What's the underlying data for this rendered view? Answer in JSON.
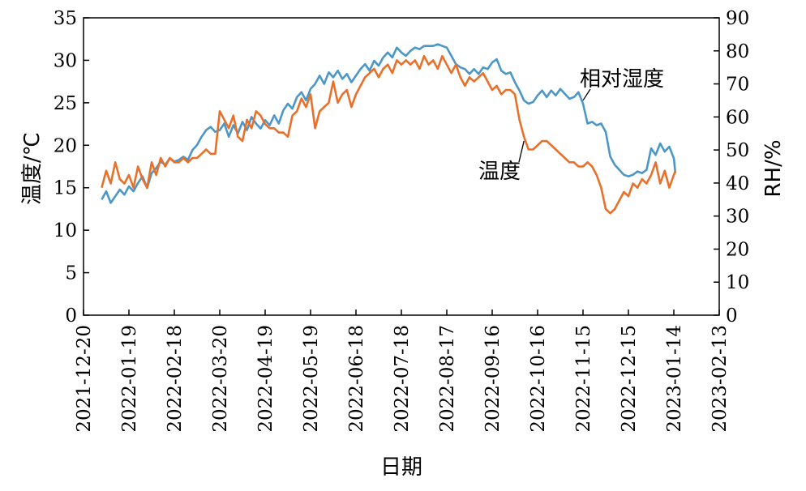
{
  "chart_data": {
    "type": "line",
    "title": "",
    "xlabel": "日期",
    "ylabel_left": "温度/℃",
    "ylabel_right": "RH/%",
    "x_ticks": [
      "2021-12-20",
      "2022-01-19",
      "2022-02-18",
      "2022-03-20",
      "2022-04-19",
      "2022-05-19",
      "2022-06-18",
      "2022-07-18",
      "2022-08-17",
      "2022-09-16",
      "2022-10-16",
      "2022-11-15",
      "2022-12-15",
      "2023-01-14",
      "2023-02-13"
    ],
    "xlim": [
      "2021-12-20",
      "2023-02-13"
    ],
    "ylim_left": [
      0,
      35
    ],
    "ylim_right": [
      0,
      90
    ],
    "yticks_left": [
      0,
      5,
      10,
      15,
      20,
      25,
      30,
      35
    ],
    "yticks_right": [
      0,
      10,
      20,
      30,
      40,
      50,
      60,
      70,
      80,
      90
    ],
    "grid": false,
    "legend": "none",
    "series": [
      {
        "name": "温度",
        "axis": "left",
        "color": "#E8702A",
        "points": [
          [
            "2022-01-01",
            15.0
          ],
          [
            "2022-01-04",
            17.0
          ],
          [
            "2022-01-07",
            15.5
          ],
          [
            "2022-01-10",
            18.0
          ],
          [
            "2022-01-13",
            16.0
          ],
          [
            "2022-01-16",
            15.5
          ],
          [
            "2022-01-19",
            16.5
          ],
          [
            "2022-01-22",
            15.0
          ],
          [
            "2022-01-25",
            17.5
          ],
          [
            "2022-01-28",
            16.0
          ],
          [
            "2022-01-31",
            15.0
          ],
          [
            "2022-02-03",
            18.0
          ],
          [
            "2022-02-06",
            16.5
          ],
          [
            "2022-02-09",
            18.5
          ],
          [
            "2022-02-12",
            17.5
          ],
          [
            "2022-02-15",
            18.5
          ],
          [
            "2022-02-18",
            18.0
          ],
          [
            "2022-02-21",
            18.0
          ],
          [
            "2022-02-24",
            18.5
          ],
          [
            "2022-02-27",
            18.0
          ],
          [
            "2022-03-02",
            18.5
          ],
          [
            "2022-03-05",
            18.5
          ],
          [
            "2022-03-08",
            19.0
          ],
          [
            "2022-03-11",
            19.5
          ],
          [
            "2022-03-14",
            19.0
          ],
          [
            "2022-03-17",
            19.0
          ],
          [
            "2022-03-20",
            24.0
          ],
          [
            "2022-03-23",
            23.0
          ],
          [
            "2022-03-26",
            22.0
          ],
          [
            "2022-03-29",
            23.5
          ],
          [
            "2022-04-01",
            21.0
          ],
          [
            "2022-04-04",
            20.5
          ],
          [
            "2022-04-07",
            23.0
          ],
          [
            "2022-04-10",
            22.0
          ],
          [
            "2022-04-13",
            24.0
          ],
          [
            "2022-04-16",
            23.5
          ],
          [
            "2022-04-19",
            22.5
          ],
          [
            "2022-04-22",
            22.0
          ],
          [
            "2022-04-25",
            22.0
          ],
          [
            "2022-04-28",
            21.5
          ],
          [
            "2022-05-01",
            21.5
          ],
          [
            "2022-05-04",
            21.0
          ],
          [
            "2022-05-07",
            23.5
          ],
          [
            "2022-05-10",
            24.0
          ],
          [
            "2022-05-13",
            25.5
          ],
          [
            "2022-05-16",
            24.5
          ],
          [
            "2022-05-19",
            26.0
          ],
          [
            "2022-05-22",
            22.0
          ],
          [
            "2022-05-25",
            24.0
          ],
          [
            "2022-05-28",
            24.5
          ],
          [
            "2022-05-31",
            25.0
          ],
          [
            "2022-06-03",
            27.5
          ],
          [
            "2022-06-06",
            25.0
          ],
          [
            "2022-06-09",
            26.0
          ],
          [
            "2022-06-12",
            26.5
          ],
          [
            "2022-06-15",
            24.5
          ],
          [
            "2022-06-18",
            26.0
          ],
          [
            "2022-06-21",
            27.0
          ],
          [
            "2022-06-24",
            28.0
          ],
          [
            "2022-06-27",
            28.5
          ],
          [
            "2022-06-30",
            29.0
          ],
          [
            "2022-07-03",
            28.0
          ],
          [
            "2022-07-06",
            29.0
          ],
          [
            "2022-07-09",
            29.5
          ],
          [
            "2022-07-12",
            28.5
          ],
          [
            "2022-07-15",
            30.0
          ],
          [
            "2022-07-18",
            29.5
          ],
          [
            "2022-07-21",
            30.0
          ],
          [
            "2022-07-24",
            29.5
          ],
          [
            "2022-07-27",
            30.0
          ],
          [
            "2022-07-30",
            29.0
          ],
          [
            "2022-08-02",
            30.5
          ],
          [
            "2022-08-05",
            29.5
          ],
          [
            "2022-08-08",
            30.0
          ],
          [
            "2022-08-11",
            29.0
          ],
          [
            "2022-08-14",
            30.5
          ],
          [
            "2022-08-17",
            29.5
          ],
          [
            "2022-08-20",
            28.5
          ],
          [
            "2022-08-23",
            29.5
          ],
          [
            "2022-08-26",
            28.0
          ],
          [
            "2022-08-29",
            27.0
          ],
          [
            "2022-09-01",
            28.0
          ],
          [
            "2022-09-04",
            27.5
          ],
          [
            "2022-09-07",
            28.0
          ],
          [
            "2022-09-10",
            28.5
          ],
          [
            "2022-09-13",
            27.5
          ],
          [
            "2022-09-16",
            26.5
          ],
          [
            "2022-09-19",
            27.0
          ],
          [
            "2022-09-22",
            26.0
          ],
          [
            "2022-09-25",
            26.5
          ],
          [
            "2022-09-28",
            26.5
          ],
          [
            "2022-10-01",
            26.0
          ],
          [
            "2022-10-04",
            23.0
          ],
          [
            "2022-10-07",
            21.0
          ],
          [
            "2022-10-10",
            19.5
          ],
          [
            "2022-10-13",
            19.5
          ],
          [
            "2022-10-16",
            20.0
          ],
          [
            "2022-10-19",
            20.5
          ],
          [
            "2022-10-22",
            20.5
          ],
          [
            "2022-10-25",
            20.0
          ],
          [
            "2022-10-28",
            19.5
          ],
          [
            "2022-10-31",
            19.0
          ],
          [
            "2022-11-03",
            18.5
          ],
          [
            "2022-11-06",
            18.0
          ],
          [
            "2022-11-09",
            18.0
          ],
          [
            "2022-11-12",
            17.5
          ],
          [
            "2022-11-15",
            17.5
          ],
          [
            "2022-11-18",
            18.0
          ],
          [
            "2022-11-21",
            17.5
          ],
          [
            "2022-11-24",
            16.5
          ],
          [
            "2022-11-27",
            15.0
          ],
          [
            "2022-11-30",
            12.5
          ],
          [
            "2022-12-03",
            12.0
          ],
          [
            "2022-12-06",
            12.5
          ],
          [
            "2022-12-09",
            13.5
          ],
          [
            "2022-12-12",
            14.5
          ],
          [
            "2022-12-15",
            14.0
          ],
          [
            "2022-12-18",
            15.5
          ],
          [
            "2022-12-21",
            15.0
          ],
          [
            "2022-12-24",
            16.0
          ],
          [
            "2022-12-27",
            15.5
          ],
          [
            "2022-12-30",
            16.5
          ],
          [
            "2023-01-02",
            18.0
          ],
          [
            "2023-01-05",
            15.5
          ],
          [
            "2023-01-08",
            17.0
          ],
          [
            "2023-01-11",
            15.0
          ],
          [
            "2023-01-14",
            16.5
          ],
          [
            "2023-01-15",
            17.0
          ]
        ]
      },
      {
        "name": "相对湿度",
        "axis": "right",
        "color": "#4B97C8",
        "points": [
          [
            "2022-01-01",
            35.0
          ],
          [
            "2022-01-04",
            37.5
          ],
          [
            "2022-01-07",
            34.0
          ],
          [
            "2022-01-10",
            36.0
          ],
          [
            "2022-01-13",
            38.0
          ],
          [
            "2022-01-16",
            36.5
          ],
          [
            "2022-01-19",
            39.0
          ],
          [
            "2022-01-22",
            37.5
          ],
          [
            "2022-01-25",
            40.0
          ],
          [
            "2022-01-28",
            42.0
          ],
          [
            "2022-01-31",
            38.5
          ],
          [
            "2022-02-03",
            43.0
          ],
          [
            "2022-02-06",
            44.5
          ],
          [
            "2022-02-09",
            46.5
          ],
          [
            "2022-02-12",
            45.5
          ],
          [
            "2022-02-15",
            47.5
          ],
          [
            "2022-02-18",
            46.5
          ],
          [
            "2022-02-21",
            47.0
          ],
          [
            "2022-02-24",
            48.0
          ],
          [
            "2022-02-27",
            47.0
          ],
          [
            "2022-03-02",
            50.0
          ],
          [
            "2022-03-05",
            51.5
          ],
          [
            "2022-03-08",
            54.0
          ],
          [
            "2022-03-11",
            56.0
          ],
          [
            "2022-03-14",
            57.0
          ],
          [
            "2022-03-17",
            55.5
          ],
          [
            "2022-03-20",
            56.0
          ],
          [
            "2022-03-23",
            58.0
          ],
          [
            "2022-03-26",
            54.0
          ],
          [
            "2022-03-29",
            57.5
          ],
          [
            "2022-04-01",
            55.0
          ],
          [
            "2022-04-04",
            58.5
          ],
          [
            "2022-04-07",
            56.0
          ],
          [
            "2022-04-10",
            60.0
          ],
          [
            "2022-04-13",
            58.0
          ],
          [
            "2022-04-16",
            56.5
          ],
          [
            "2022-04-19",
            59.0
          ],
          [
            "2022-04-22",
            57.5
          ],
          [
            "2022-04-25",
            60.5
          ],
          [
            "2022-04-28",
            58.0
          ],
          [
            "2022-05-01",
            62.0
          ],
          [
            "2022-05-04",
            64.0
          ],
          [
            "2022-05-07",
            62.5
          ],
          [
            "2022-05-10",
            66.0
          ],
          [
            "2022-05-13",
            67.5
          ],
          [
            "2022-05-16",
            65.0
          ],
          [
            "2022-05-19",
            68.5
          ],
          [
            "2022-05-22",
            70.0
          ],
          [
            "2022-05-25",
            72.5
          ],
          [
            "2022-05-28",
            70.0
          ],
          [
            "2022-05-31",
            73.5
          ],
          [
            "2022-06-03",
            72.0
          ],
          [
            "2022-06-06",
            74.0
          ],
          [
            "2022-06-09",
            71.5
          ],
          [
            "2022-06-12",
            73.0
          ],
          [
            "2022-06-15",
            70.5
          ],
          [
            "2022-06-18",
            72.5
          ],
          [
            "2022-06-21",
            74.5
          ],
          [
            "2022-06-24",
            76.0
          ],
          [
            "2022-06-27",
            74.0
          ],
          [
            "2022-06-30",
            77.0
          ],
          [
            "2022-07-03",
            75.5
          ],
          [
            "2022-07-06",
            78.0
          ],
          [
            "2022-07-09",
            79.5
          ],
          [
            "2022-07-12",
            78.0
          ],
          [
            "2022-07-15",
            81.0
          ],
          [
            "2022-07-18",
            79.5
          ],
          [
            "2022-07-21",
            78.5
          ],
          [
            "2022-07-24",
            80.0
          ],
          [
            "2022-07-27",
            81.0
          ],
          [
            "2022-07-30",
            80.5
          ],
          [
            "2022-08-02",
            81.5
          ],
          [
            "2022-08-05",
            81.5
          ],
          [
            "2022-08-08",
            81.5
          ],
          [
            "2022-08-11",
            82.0
          ],
          [
            "2022-08-14",
            81.5
          ],
          [
            "2022-08-17",
            81.0
          ],
          [
            "2022-08-20",
            78.5
          ],
          [
            "2022-08-23",
            76.0
          ],
          [
            "2022-08-26",
            75.0
          ],
          [
            "2022-08-29",
            74.5
          ],
          [
            "2022-09-01",
            73.0
          ],
          [
            "2022-09-04",
            74.5
          ],
          [
            "2022-09-07",
            73.0
          ],
          [
            "2022-09-10",
            75.0
          ],
          [
            "2022-09-13",
            74.5
          ],
          [
            "2022-09-16",
            76.5
          ],
          [
            "2022-09-19",
            77.5
          ],
          [
            "2022-09-22",
            74.0
          ],
          [
            "2022-09-25",
            73.0
          ],
          [
            "2022-09-28",
            73.5
          ],
          [
            "2022-10-01",
            70.5
          ],
          [
            "2022-10-04",
            68.0
          ],
          [
            "2022-10-07",
            65.0
          ],
          [
            "2022-10-10",
            64.0
          ],
          [
            "2022-10-13",
            64.5
          ],
          [
            "2022-10-16",
            66.5
          ],
          [
            "2022-10-19",
            68.0
          ],
          [
            "2022-10-22",
            66.0
          ],
          [
            "2022-10-25",
            68.0
          ],
          [
            "2022-10-28",
            66.5
          ],
          [
            "2022-10-31",
            68.5
          ],
          [
            "2022-11-03",
            67.0
          ],
          [
            "2022-11-06",
            65.5
          ],
          [
            "2022-11-09",
            66.0
          ],
          [
            "2022-11-12",
            67.5
          ],
          [
            "2022-11-15",
            64.0
          ],
          [
            "2022-11-18",
            58.0
          ],
          [
            "2022-11-21",
            58.5
          ],
          [
            "2022-11-24",
            57.5
          ],
          [
            "2022-11-27",
            58.0
          ],
          [
            "2022-11-30",
            55.5
          ],
          [
            "2022-12-03",
            48.0
          ],
          [
            "2022-12-06",
            45.5
          ],
          [
            "2022-12-09",
            44.0
          ],
          [
            "2022-12-12",
            42.5
          ],
          [
            "2022-12-15",
            42.0
          ],
          [
            "2022-12-18",
            42.5
          ],
          [
            "2022-12-21",
            43.5
          ],
          [
            "2022-12-24",
            43.0
          ],
          [
            "2022-12-27",
            44.0
          ],
          [
            "2022-12-30",
            50.5
          ],
          [
            "2023-01-02",
            48.5
          ],
          [
            "2023-01-05",
            52.0
          ],
          [
            "2023-01-08",
            49.5
          ],
          [
            "2023-01-11",
            51.0
          ],
          [
            "2023-01-14",
            47.5
          ],
          [
            "2023-01-15",
            43.0
          ]
        ]
      }
    ],
    "annotations": [
      {
        "text": "相对湿度",
        "series": "相对湿度",
        "x": "2022-11-15",
        "y": 65,
        "axis": "right"
      },
      {
        "text": "温度",
        "series": "温度",
        "x": "2022-10-07",
        "y": 20.5,
        "axis": "left"
      }
    ]
  }
}
